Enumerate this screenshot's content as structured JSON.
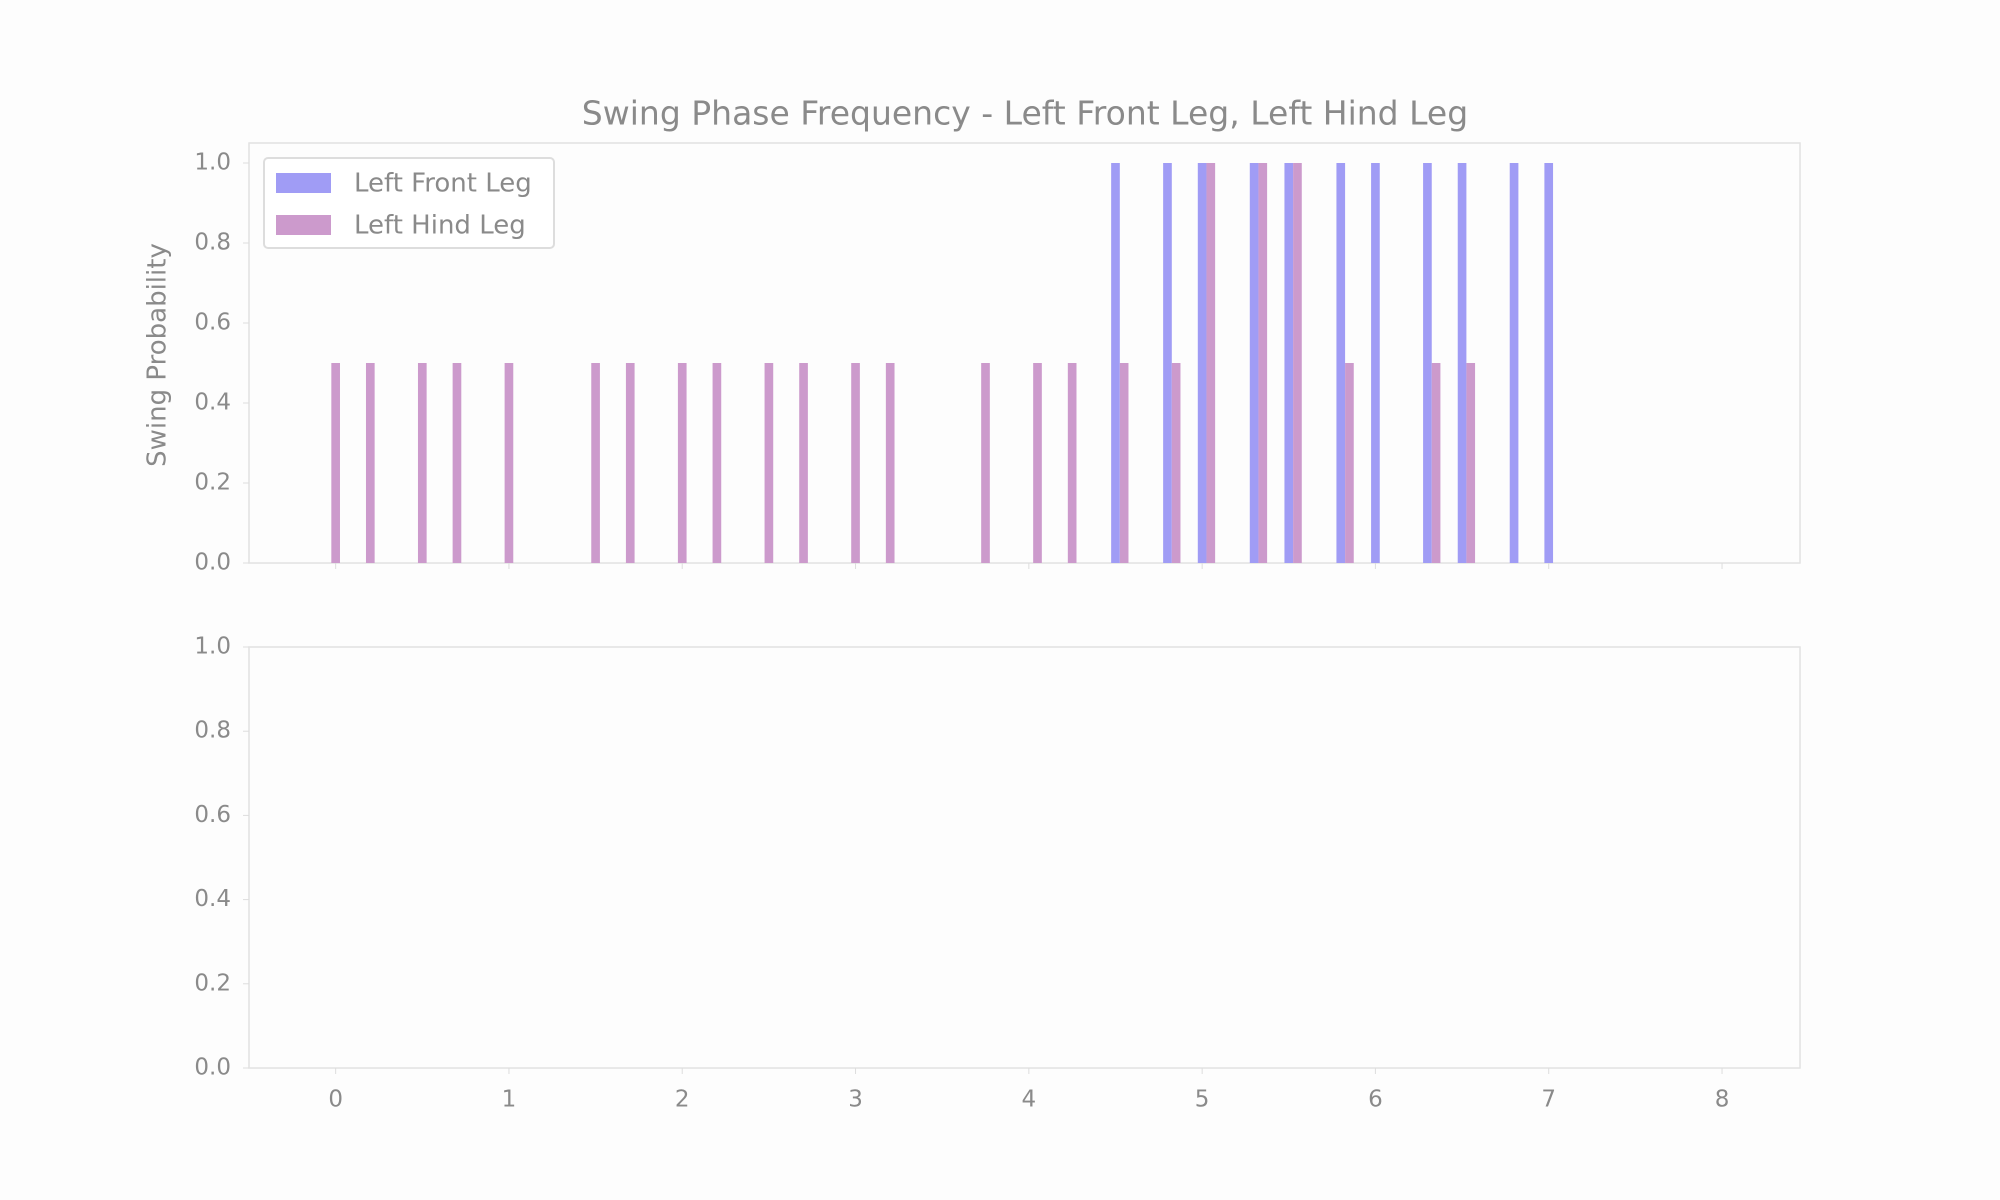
{
  "chart_data": [
    {
      "type": "bar",
      "title": "Swing Phase Frequency - Left Front Leg, Left Hind Leg",
      "ylabel": "Swing Probability",
      "legend": "upper left",
      "xlim": [
        -0.5,
        8.45
      ],
      "ylim": [
        0,
        1.05
      ],
      "yticks": [
        {
          "value": 0,
          "label": "0.0"
        },
        0.2,
        0.4,
        0.6,
        0.8,
        {
          "value": 1,
          "label": "1.0"
        }
      ],
      "series": [
        {
          "name": "Left Front Leg",
          "color": "#a09cf5",
          "x": [
            4.5,
            4.8,
            5.0,
            5.3,
            5.5,
            5.8,
            6.0,
            6.3,
            6.5,
            6.8,
            7.0
          ],
          "values": [
            1,
            1,
            1,
            1,
            1,
            1,
            1,
            1,
            1,
            1,
            1
          ]
        },
        {
          "name": "Left Hind Leg",
          "color": "#cc9acc",
          "x": [
            0.0,
            0.2,
            0.5,
            0.7,
            1.0,
            1.5,
            1.7,
            2.0,
            2.2,
            2.5,
            2.7,
            3.0,
            3.2,
            3.75,
            4.05,
            4.25,
            4.55,
            4.85,
            5.05,
            5.35,
            5.55,
            5.85,
            6.35,
            6.55
          ],
          "values": [
            0.5,
            0.5,
            0.5,
            0.5,
            0.5,
            0.5,
            0.5,
            0.5,
            0.5,
            0.5,
            0.5,
            0.5,
            0.5,
            0.5,
            0.5,
            0.5,
            0.5,
            0.5,
            1,
            1,
            1,
            0.5,
            0.5,
            0.5
          ]
        }
      ]
    },
    {
      "type": "bar",
      "xlim": [
        -0.5,
        8.45
      ],
      "xticks": [
        0,
        1,
        2,
        3,
        4,
        5,
        6,
        7,
        8
      ],
      "ylim": [
        0,
        1
      ],
      "yticks": [
        {
          "value": 0,
          "label": "0.0"
        },
        0.2,
        0.4,
        0.6,
        0.8,
        {
          "value": 1,
          "label": "1.0"
        }
      ],
      "series": []
    }
  ]
}
